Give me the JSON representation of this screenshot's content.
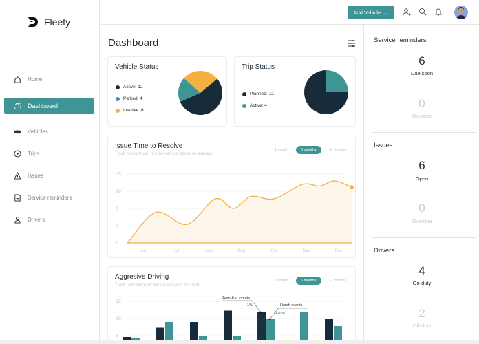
{
  "app": {
    "name": "Fleety"
  },
  "sidebar": {
    "items": [
      {
        "label": "Home",
        "icon": "home-icon"
      },
      {
        "label": "Dashboard",
        "icon": "chart-icon",
        "active": true
      },
      {
        "label": "Vehicles",
        "icon": "car-icon"
      },
      {
        "label": "Trips",
        "icon": "compass-icon"
      },
      {
        "label": "Issues",
        "icon": "warning-icon"
      },
      {
        "label": "Service reminders",
        "icon": "document-icon"
      },
      {
        "label": "Drivers",
        "icon": "user-icon"
      }
    ]
  },
  "header": {
    "add_vehicle": "Add Vehicle"
  },
  "page": {
    "title": "Dashboard"
  },
  "colors": {
    "teal": "#3f9596",
    "navy": "#172b3a",
    "orange": "#f4b042"
  },
  "chart_data": [
    {
      "type": "pie",
      "title": "Vehicle Status",
      "slices": [
        {
          "name": "Active",
          "label": "Active: 12",
          "value": 12,
          "color": "#172b3a"
        },
        {
          "name": "Parked",
          "label": "Parked: 4",
          "value": 4,
          "color": "#3f9596"
        },
        {
          "name": "Inactive",
          "label": "Inactive: 6",
          "value": 6,
          "color": "#f4b042"
        }
      ]
    },
    {
      "type": "pie",
      "title": "Trip Status",
      "slices": [
        {
          "name": "Planned",
          "label": "Planned: 12",
          "value": 12,
          "color": "#172b3a"
        },
        {
          "name": "Active",
          "label": "Active: 4",
          "value": 4,
          "color": "#3f9596"
        }
      ]
    },
    {
      "type": "area",
      "title": "Issue Time to Resolve",
      "subtitle": "Track how fast you resolve vehicle issues on average.",
      "ranges": [
        "1 month",
        "6 months",
        "12 months"
      ],
      "selected_range": "6 months",
      "categories": [
        "Jun",
        "Jul",
        "Aug",
        "Sep",
        "Oct",
        "Nov",
        "Dec"
      ],
      "yticks": [
        0,
        1,
        5,
        10,
        15
      ],
      "color": "#f4b042",
      "grid": true,
      "points": [
        {
          "x": -0.5,
          "y": 0
        },
        {
          "x": 0.37,
          "y": 4.1
        },
        {
          "x": 1.33,
          "y": 1.3
        },
        {
          "x": 2.2,
          "y": 7.8
        },
        {
          "x": 2.76,
          "y": 5
        },
        {
          "x": 3.3,
          "y": 8.5
        },
        {
          "x": 4.0,
          "y": 7.8
        },
        {
          "x": 4.88,
          "y": 12
        },
        {
          "x": 5.41,
          "y": 11.5
        },
        {
          "x": 5.87,
          "y": 13
        },
        {
          "x": 6.4,
          "y": 11.2
        }
      ]
    },
    {
      "type": "bar",
      "title": "Aggresive Driving",
      "subtitle": "Track how well your team is doing on the road.",
      "ranges": [
        "1 month",
        "6 months",
        "12 months"
      ],
      "selected_range": "6 months",
      "yticks": [
        5,
        10,
        15
      ],
      "grid": true,
      "series": [
        {
          "values": [
            4.6,
            7.3,
            9,
            12.3,
            11.8,
            null,
            9.8
          ],
          "color": "#172b3a"
        },
        {
          "values": [
            4.2,
            9,
            5,
            5,
            9.8,
            11.8,
            7.8
          ],
          "color": "#3f9596"
        }
      ],
      "annotations": [
        {
          "label": "Speeding events",
          "change": "-1%"
        },
        {
          "label": "Harsh events",
          "change": "+20%"
        }
      ]
    }
  ],
  "right": {
    "service": {
      "title": "Service reminders",
      "due": "6",
      "due_label": "Due soon",
      "overdue": "0",
      "overdue_label": "Overdue"
    },
    "issues": {
      "title": "Issues",
      "open": "6",
      "open_label": "Open",
      "overdue": "0",
      "overdue_label": "Overdue"
    },
    "drivers": {
      "title": "Drivers",
      "on": "4",
      "on_label": "On-duty",
      "off": "2",
      "off_label": "Off-duty"
    }
  }
}
